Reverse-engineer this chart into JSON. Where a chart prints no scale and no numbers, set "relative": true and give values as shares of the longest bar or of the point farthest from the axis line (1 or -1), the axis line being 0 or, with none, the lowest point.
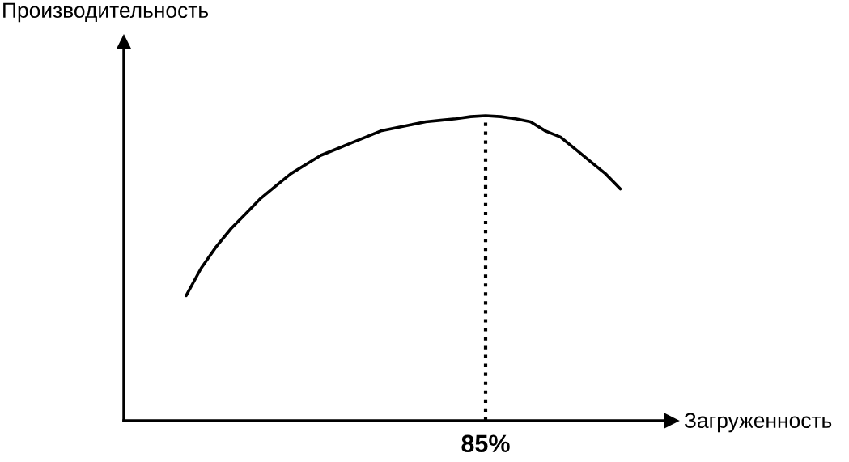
{
  "chart_data": {
    "type": "line",
    "relative": true,
    "xlabel": "Загруженность",
    "ylabel": "Производительность",
    "categories": [
      null,
      null,
      null,
      null,
      null,
      null,
      null,
      null,
      null,
      null,
      null,
      null,
      null,
      null,
      null,
      null,
      null,
      null,
      null,
      null,
      null,
      null,
      null,
      null,
      null,
      null,
      null,
      null,
      null,
      null
    ],
    "series": [
      {
        "color": "#000000",
        "values": [
          0.41,
          0.5,
          0.57,
          0.63,
          0.68,
          0.73,
          0.77,
          0.81,
          0.84,
          0.87,
          0.89,
          0.91,
          0.93,
          0.95,
          0.96,
          0.97,
          0.98,
          0.985,
          0.99,
          0.997,
          1,
          0.997,
          0.99,
          0.98,
          0.95,
          0.93,
          0.89,
          0.85,
          0.81,
          0.76
        ]
      }
    ],
    "annotations": [
      "85%"
    ],
    "marker": "none",
    "line_style": "solid"
  }
}
